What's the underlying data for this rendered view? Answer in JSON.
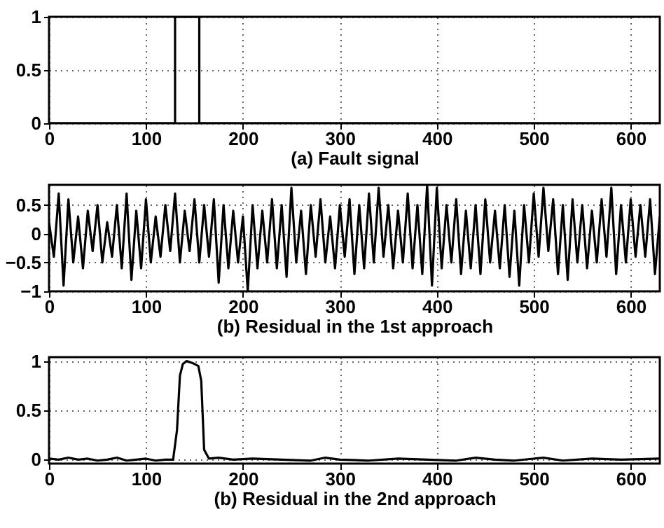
{
  "chart_data": [
    {
      "type": "line",
      "xlabel": "(a) Fault signal",
      "x": [
        0,
        130,
        130,
        155,
        155,
        630
      ],
      "series": [
        {
          "color": "#000000",
          "values": [
            0,
            0,
            1,
            1,
            0,
            0
          ]
        }
      ],
      "xlim": [
        0,
        630
      ],
      "ylim": [
        0,
        1
      ],
      "xticks": [
        0,
        100,
        200,
        300,
        400,
        500,
        600
      ],
      "yticks": [
        0,
        0.5,
        1
      ],
      "grid": true
    },
    {
      "type": "line",
      "xlabel": "(b) Residual in the 1st approach",
      "x": [
        0,
        5,
        10,
        15,
        20,
        25,
        30,
        35,
        40,
        45,
        50,
        55,
        60,
        65,
        70,
        75,
        80,
        85,
        90,
        95,
        100,
        105,
        110,
        115,
        120,
        125,
        130,
        135,
        140,
        145,
        150,
        155,
        160,
        165,
        170,
        175,
        180,
        185,
        190,
        195,
        200,
        205,
        210,
        215,
        220,
        225,
        230,
        235,
        240,
        245,
        250,
        255,
        260,
        265,
        270,
        275,
        280,
        285,
        290,
        295,
        300,
        305,
        310,
        315,
        320,
        325,
        330,
        335,
        340,
        345,
        350,
        355,
        360,
        365,
        370,
        375,
        380,
        385,
        390,
        395,
        400,
        405,
        410,
        415,
        420,
        425,
        430,
        435,
        440,
        445,
        450,
        455,
        460,
        465,
        470,
        475,
        480,
        485,
        490,
        495,
        500,
        505,
        510,
        515,
        520,
        525,
        530,
        535,
        540,
        545,
        550,
        555,
        560,
        565,
        570,
        575,
        580,
        585,
        590,
        595,
        600,
        605,
        610,
        615,
        620,
        625,
        630
      ],
      "series": [
        {
          "color": "#000000",
          "values": [
            0.2,
            -0.4,
            0.7,
            -0.9,
            0.6,
            -0.5,
            0.3,
            -0.6,
            0.4,
            -0.3,
            0.5,
            -0.5,
            0.2,
            -0.4,
            0.5,
            -0.6,
            0.7,
            -0.8,
            0.4,
            -0.6,
            0.6,
            -0.5,
            0.3,
            -0.4,
            0.5,
            -0.3,
            0.7,
            -0.5,
            0.4,
            -0.3,
            0.6,
            -0.5,
            0.5,
            -0.4,
            0.6,
            -0.85,
            0.5,
            -0.6,
            0.4,
            -0.5,
            0.3,
            -1.0,
            0.5,
            -0.6,
            0.4,
            -0.5,
            0.6,
            -0.6,
            0.5,
            -0.75,
            0.8,
            -0.5,
            0.4,
            -0.7,
            0.5,
            -0.4,
            0.6,
            -0.5,
            0.3,
            -0.6,
            0.5,
            -0.4,
            0.6,
            -0.7,
            0.5,
            -0.6,
            0.7,
            -0.5,
            0.8,
            -0.4,
            0.5,
            -0.6,
            0.4,
            -0.5,
            0.7,
            -0.6,
            0.5,
            -0.7,
            0.85,
            -0.9,
            0.8,
            -0.6,
            0.5,
            -0.5,
            0.6,
            -0.7,
            0.4,
            -0.6,
            0.5,
            -0.7,
            0.6,
            -0.5,
            0.4,
            -0.6,
            0.5,
            -0.75,
            0.4,
            -0.9,
            0.5,
            -0.5,
            0.7,
            -0.4,
            0.8,
            -0.3,
            0.6,
            -0.7,
            0.5,
            -0.8,
            0.6,
            -0.5,
            0.5,
            -0.6,
            0.4,
            -0.5,
            0.6,
            -0.4,
            0.8,
            -0.7,
            0.5,
            -0.5,
            0.6,
            -0.4,
            0.5,
            -0.4,
            0.6,
            -0.7,
            0.3
          ]
        }
      ],
      "xlim": [
        0,
        630
      ],
      "ylim": [
        -1,
        0.85
      ],
      "xticks": [
        0,
        100,
        200,
        300,
        400,
        500,
        600
      ],
      "yticks": [
        -1,
        -0.5,
        0,
        0.5
      ],
      "grid": true
    },
    {
      "type": "line",
      "xlabel": "(b) Residual in the 2nd approach",
      "x": [
        0,
        10,
        20,
        30,
        40,
        50,
        60,
        70,
        80,
        90,
        100,
        110,
        120,
        128,
        132,
        135,
        138,
        142,
        148,
        154,
        157,
        160,
        165,
        175,
        190,
        210,
        240,
        270,
        285,
        300,
        330,
        360,
        390,
        420,
        440,
        460,
        480,
        510,
        530,
        560,
        590,
        630
      ],
      "series": [
        {
          "color": "#000000",
          "values": [
            0.01,
            0.0,
            0.02,
            0.0,
            0.01,
            -0.01,
            0.0,
            0.02,
            -0.01,
            0.0,
            0.01,
            -0.01,
            0.0,
            0.0,
            0.3,
            0.85,
            0.97,
            1.0,
            0.98,
            0.95,
            0.8,
            0.1,
            0.01,
            0.02,
            0.0,
            0.01,
            0.0,
            -0.01,
            0.02,
            0.0,
            -0.01,
            0.01,
            0.0,
            -0.01,
            0.02,
            0.0,
            -0.01,
            0.02,
            -0.01,
            0.01,
            0.0,
            0.01
          ]
        }
      ],
      "xlim": [
        0,
        630
      ],
      "ylim": [
        -0.04,
        1.04
      ],
      "xticks": [
        0,
        100,
        200,
        300,
        400,
        500,
        600
      ],
      "yticks": [
        0,
        0.5,
        1
      ],
      "grid": true
    }
  ]
}
